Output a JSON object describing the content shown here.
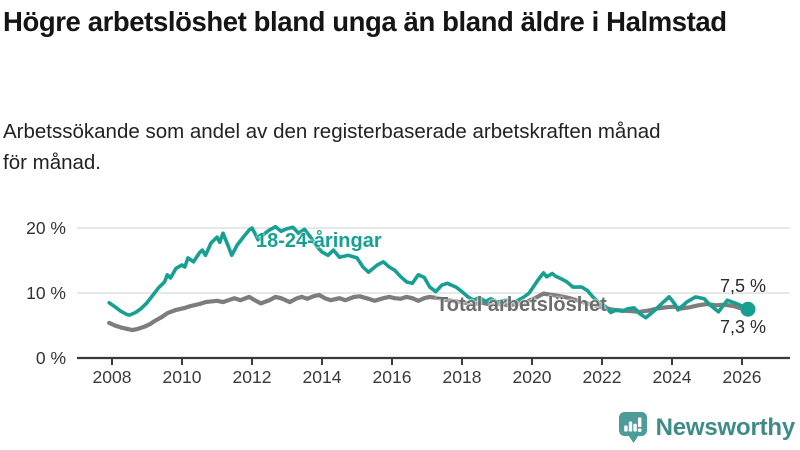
{
  "header": {
    "title": "Högre arbetslöshet bland unga än bland äldre i Halmstad",
    "subtitle": "Arbetssökande som andel av den registerbaserade arbetskraften månad\nför månad."
  },
  "colors": {
    "youth_line": "#17a092",
    "total_line": "#7d7d7d",
    "total_label": "#6d6d6d",
    "axis": "#3a3a3a",
    "gridline": "#d9d9d9",
    "brand_teal": "#4d9c99",
    "brand_text": "#3e8b88"
  },
  "chart_data": {
    "type": "line",
    "title": "Högre arbetslöshet bland unga än bland äldre i Halmstad",
    "subtitle": "Arbetssökande som andel av den registerbaserade arbetskraften månad för månad.",
    "unit": "%",
    "xlim": [
      2007,
      2027.4
    ],
    "ylim": [
      0,
      25
    ],
    "grid": "horizontal",
    "legend_position": "inline-labels",
    "y_ticks": [
      {
        "v": 0,
        "label": "0 %"
      },
      {
        "v": 10,
        "label": "10 %"
      },
      {
        "v": 20,
        "label": "20 %"
      }
    ],
    "x_ticks": [
      {
        "v": 2008,
        "label": "2008"
      },
      {
        "v": 2010,
        "label": "2010"
      },
      {
        "v": 2012,
        "label": "2012"
      },
      {
        "v": 2014,
        "label": "2014"
      },
      {
        "v": 2016,
        "label": "2016"
      },
      {
        "v": 2018,
        "label": "2018"
      },
      {
        "v": 2020,
        "label": "2020"
      },
      {
        "v": 2022,
        "label": "2022"
      },
      {
        "v": 2024,
        "label": "2024"
      },
      {
        "v": 2026,
        "label": "2026"
      }
    ],
    "series": [
      {
        "name": "18-24-åringar",
        "color": "#17a092",
        "width": 3.6,
        "marker_end": true,
        "end_value": 7.5,
        "end_label": "7,5 %",
        "points": [
          [
            2007.92,
            8.5
          ],
          [
            2008.08,
            7.9
          ],
          [
            2008.25,
            7.2
          ],
          [
            2008.42,
            6.7
          ],
          [
            2008.5,
            6.6
          ],
          [
            2008.67,
            7.0
          ],
          [
            2008.83,
            7.6
          ],
          [
            2009.0,
            8.5
          ],
          [
            2009.17,
            9.7
          ],
          [
            2009.33,
            10.8
          ],
          [
            2009.5,
            11.7
          ],
          [
            2009.58,
            12.8
          ],
          [
            2009.67,
            12.3
          ],
          [
            2009.83,
            13.8
          ],
          [
            2010.0,
            14.3
          ],
          [
            2010.08,
            14.0
          ],
          [
            2010.17,
            15.4
          ],
          [
            2010.33,
            14.8
          ],
          [
            2010.5,
            16.2
          ],
          [
            2010.58,
            16.6
          ],
          [
            2010.67,
            15.8
          ],
          [
            2010.83,
            17.7
          ],
          [
            2011.0,
            18.6
          ],
          [
            2011.08,
            17.8
          ],
          [
            2011.17,
            19.2
          ],
          [
            2011.33,
            17.1
          ],
          [
            2011.42,
            15.8
          ],
          [
            2011.58,
            17.4
          ],
          [
            2011.75,
            18.6
          ],
          [
            2011.92,
            19.7
          ],
          [
            2012.0,
            20.0
          ],
          [
            2012.08,
            19.2
          ],
          [
            2012.17,
            18.2
          ],
          [
            2012.33,
            19.0
          ],
          [
            2012.5,
            19.7
          ],
          [
            2012.67,
            20.2
          ],
          [
            2012.83,
            19.5
          ],
          [
            2013.0,
            19.9
          ],
          [
            2013.17,
            20.1
          ],
          [
            2013.33,
            19.2
          ],
          [
            2013.5,
            19.8
          ],
          [
            2013.67,
            18.6
          ],
          [
            2013.83,
            17.3
          ],
          [
            2014.0,
            16.3
          ],
          [
            2014.17,
            15.8
          ],
          [
            2014.33,
            16.6
          ],
          [
            2014.5,
            15.5
          ],
          [
            2014.75,
            15.8
          ],
          [
            2015.0,
            15.4
          ],
          [
            2015.17,
            14.0
          ],
          [
            2015.33,
            13.2
          ],
          [
            2015.58,
            14.3
          ],
          [
            2015.75,
            14.8
          ],
          [
            2015.92,
            14.0
          ],
          [
            2016.08,
            13.5
          ],
          [
            2016.25,
            12.5
          ],
          [
            2016.42,
            11.7
          ],
          [
            2016.58,
            11.5
          ],
          [
            2016.75,
            12.8
          ],
          [
            2016.92,
            12.4
          ],
          [
            2017.08,
            10.9
          ],
          [
            2017.25,
            10.2
          ],
          [
            2017.42,
            11.2
          ],
          [
            2017.58,
            11.5
          ],
          [
            2017.83,
            10.9
          ],
          [
            2018.0,
            10.2
          ],
          [
            2018.17,
            9.4
          ],
          [
            2018.33,
            8.9
          ],
          [
            2018.5,
            9.3
          ],
          [
            2018.67,
            8.7
          ],
          [
            2018.83,
            9.1
          ],
          [
            2019.0,
            8.6
          ],
          [
            2019.25,
            8.9
          ],
          [
            2019.5,
            8.6
          ],
          [
            2019.75,
            9.3
          ],
          [
            2019.92,
            10.0
          ],
          [
            2020.17,
            12.0
          ],
          [
            2020.33,
            13.1
          ],
          [
            2020.42,
            12.5
          ],
          [
            2020.58,
            13.0
          ],
          [
            2020.67,
            12.6
          ],
          [
            2020.83,
            12.2
          ],
          [
            2021.0,
            11.7
          ],
          [
            2021.17,
            10.9
          ],
          [
            2021.42,
            10.9
          ],
          [
            2021.58,
            10.4
          ],
          [
            2021.75,
            9.3
          ],
          [
            2021.92,
            8.5
          ],
          [
            2022.08,
            8.0
          ],
          [
            2022.25,
            7.0
          ],
          [
            2022.42,
            7.4
          ],
          [
            2022.58,
            7.2
          ],
          [
            2022.75,
            7.6
          ],
          [
            2022.92,
            7.7
          ],
          [
            2023.08,
            6.8
          ],
          [
            2023.25,
            6.2
          ],
          [
            2023.5,
            7.3
          ],
          [
            2023.75,
            8.6
          ],
          [
            2023.92,
            9.4
          ],
          [
            2024.08,
            8.3
          ],
          [
            2024.17,
            7.4
          ],
          [
            2024.42,
            8.6
          ],
          [
            2024.67,
            9.4
          ],
          [
            2024.92,
            9.1
          ],
          [
            2025.08,
            8.2
          ],
          [
            2025.33,
            7.1
          ],
          [
            2025.58,
            8.9
          ],
          [
            2025.83,
            8.4
          ],
          [
            2026.0,
            8.0
          ],
          [
            2026.17,
            7.5
          ]
        ]
      },
      {
        "name": "Total arbetslöshet",
        "color": "#7d7d7d",
        "width": 4.2,
        "marker_end": false,
        "end_value": 7.3,
        "end_label": "7,3 %",
        "points": [
          [
            2007.92,
            5.4
          ],
          [
            2008.08,
            5.0
          ],
          [
            2008.25,
            4.7
          ],
          [
            2008.42,
            4.5
          ],
          [
            2008.58,
            4.3
          ],
          [
            2008.75,
            4.5
          ],
          [
            2008.92,
            4.8
          ],
          [
            2009.08,
            5.2
          ],
          [
            2009.25,
            5.8
          ],
          [
            2009.42,
            6.3
          ],
          [
            2009.58,
            6.9
          ],
          [
            2009.83,
            7.4
          ],
          [
            2010.08,
            7.7
          ],
          [
            2010.25,
            8.0
          ],
          [
            2010.5,
            8.3
          ],
          [
            2010.67,
            8.6
          ],
          [
            2011.0,
            8.8
          ],
          [
            2011.17,
            8.6
          ],
          [
            2011.33,
            8.9
          ],
          [
            2011.5,
            9.2
          ],
          [
            2011.67,
            8.9
          ],
          [
            2011.92,
            9.4
          ],
          [
            2012.08,
            8.9
          ],
          [
            2012.25,
            8.4
          ],
          [
            2012.5,
            8.9
          ],
          [
            2012.67,
            9.4
          ],
          [
            2012.83,
            9.2
          ],
          [
            2013.08,
            8.6
          ],
          [
            2013.25,
            9.1
          ],
          [
            2013.42,
            9.4
          ],
          [
            2013.58,
            9.1
          ],
          [
            2013.75,
            9.5
          ],
          [
            2013.92,
            9.7
          ],
          [
            2014.08,
            9.2
          ],
          [
            2014.25,
            8.9
          ],
          [
            2014.5,
            9.2
          ],
          [
            2014.67,
            8.9
          ],
          [
            2014.92,
            9.4
          ],
          [
            2015.08,
            9.5
          ],
          [
            2015.33,
            9.1
          ],
          [
            2015.5,
            8.8
          ],
          [
            2015.75,
            9.2
          ],
          [
            2015.92,
            9.4
          ],
          [
            2016.08,
            9.2
          ],
          [
            2016.25,
            9.1
          ],
          [
            2016.42,
            9.4
          ],
          [
            2016.58,
            9.2
          ],
          [
            2016.75,
            8.8
          ],
          [
            2016.92,
            9.2
          ],
          [
            2017.08,
            9.4
          ],
          [
            2017.33,
            9.2
          ],
          [
            2017.58,
            8.9
          ],
          [
            2017.83,
            8.7
          ],
          [
            2018.08,
            8.5
          ],
          [
            2018.33,
            8.3
          ],
          [
            2018.58,
            8.5
          ],
          [
            2018.83,
            8.2
          ],
          [
            2019.08,
            8.3
          ],
          [
            2019.33,
            8.1
          ],
          [
            2019.58,
            8.3
          ],
          [
            2019.83,
            8.6
          ],
          [
            2020.08,
            9.2
          ],
          [
            2020.33,
            9.9
          ],
          [
            2020.58,
            9.7
          ],
          [
            2020.83,
            9.5
          ],
          [
            2021.08,
            9.2
          ],
          [
            2021.33,
            8.8
          ],
          [
            2021.58,
            8.4
          ],
          [
            2021.83,
            8.0
          ],
          [
            2022.08,
            7.7
          ],
          [
            2022.33,
            7.4
          ],
          [
            2022.58,
            7.3
          ],
          [
            2022.83,
            7.2
          ],
          [
            2023.08,
            7.1
          ],
          [
            2023.33,
            7.3
          ],
          [
            2023.58,
            7.6
          ],
          [
            2023.83,
            7.8
          ],
          [
            2024.08,
            7.9
          ],
          [
            2024.25,
            7.6
          ],
          [
            2024.5,
            7.8
          ],
          [
            2024.75,
            8.1
          ],
          [
            2025.0,
            8.3
          ],
          [
            2025.25,
            8.1
          ],
          [
            2025.5,
            8.2
          ],
          [
            2025.75,
            8.0
          ],
          [
            2026.0,
            7.6
          ],
          [
            2026.17,
            7.3
          ]
        ]
      }
    ]
  },
  "footer": {
    "brand": "Newsworthy"
  }
}
